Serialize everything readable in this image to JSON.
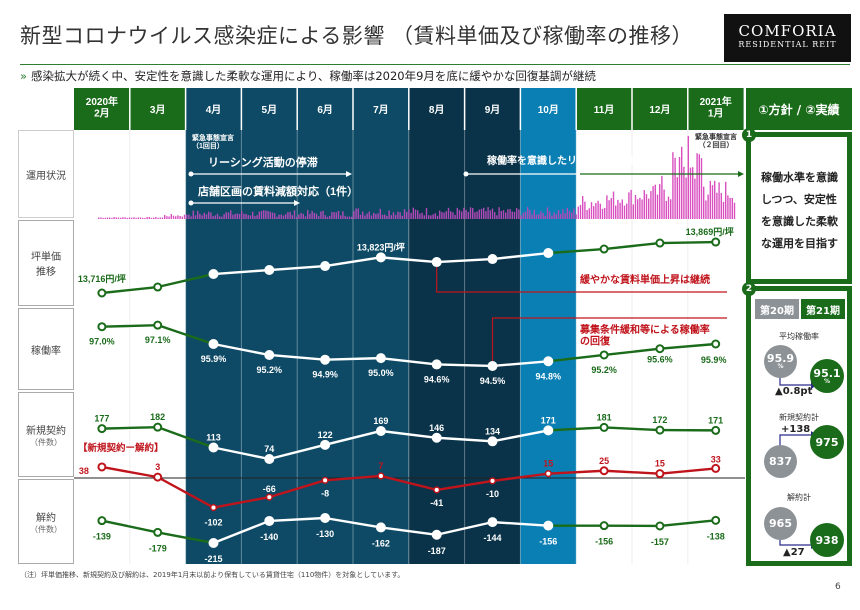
{
  "title": "新型コロナウイルス感染症による影響 （賃料単価及び稼働率の推移）",
  "logo": {
    "line1": "COMFORIA",
    "line2": "RESIDENTIAL REIT"
  },
  "subtitle_mark": "»",
  "subtitle": "感染拡大が続く中、安定性を意識した柔軟な運用により、稼働率は2020年9月を底に緩やかな回復基調が継続",
  "months": [
    "2020年\n2月",
    "3月",
    "4月",
    "5月",
    "6月",
    "7月",
    "8月",
    "9月",
    "10月",
    "11月",
    "12月",
    "2021年\n1月"
  ],
  "row_labels": {
    "status": "運用状況",
    "price": "坪単価\n推移",
    "occupancy": "稼働率",
    "new": "新規契約",
    "new_unit": "（件数）",
    "cancel": "解約",
    "cancel_unit": "（件数）"
  },
  "annotations": {
    "emergency1": "緊急事態宣言\n（1回目）",
    "leasing_stall": "リーシング活動の停滞",
    "rent_reduction": "店舗区画の賃料減額対応（1件）",
    "leasing_focus": "稼働率を意識したリーシング活動を展開",
    "emergency2": "緊急事態宣言\n（２回目）",
    "rent_rise": "緩やかな賃料単価上昇は継続",
    "occupancy_recovery": "募集条件緩和等による稼働率\nの回復",
    "net_label": "【新規契約ー解約】"
  },
  "colors": {
    "green": "#1a6b1a",
    "dark_teal": "#0e4a66",
    "darker_teal": "#0a3349",
    "blue": "#0a7fb3",
    "red": "#c0141c",
    "pink": "#d94fc0",
    "gray": "#8c9296"
  },
  "chart_data": {
    "type": "line",
    "categories": [
      "2020年2月",
      "3月",
      "4月",
      "5月",
      "6月",
      "7月",
      "8月",
      "9月",
      "10月",
      "11月",
      "12月",
      "2021年1月"
    ],
    "series": [
      {
        "key": "price",
        "values": [
          13716,
          13734,
          13773,
          13785,
          13797,
          13823,
          13809,
          13818,
          13836,
          13848,
          13866,
          13869
        ],
        "labels": [
          "13,716円/坪",
          "",
          "",
          "",
          "",
          "13,823円/坪",
          "",
          "",
          "",
          "",
          "",
          "13,869円/坪"
        ]
      },
      {
        "key": "occupancy",
        "values": [
          97.0,
          97.1,
          95.9,
          95.2,
          94.9,
          95.0,
          94.6,
          94.5,
          94.8,
          95.2,
          95.6,
          95.9
        ],
        "labels": [
          "97.0%",
          "97.1%",
          "95.9%",
          "95.2%",
          "94.9%",
          "95.0%",
          "94.6%",
          "94.5%",
          "94.8%",
          "95.2%",
          "95.6%",
          "95.9%"
        ]
      },
      {
        "key": "new",
        "values": [
          177,
          182,
          113,
          74,
          122,
          169,
          146,
          134,
          171,
          181,
          172,
          171
        ],
        "labels": [
          "177",
          "182",
          "113",
          "74",
          "122",
          "169",
          "146",
          "134",
          "171",
          "181",
          "172",
          "171"
        ]
      },
      {
        "key": "net",
        "values": [
          38,
          3,
          -102,
          -66,
          -8,
          7,
          -41,
          -10,
          15,
          25,
          15,
          33
        ],
        "labels": [
          "38",
          "3",
          "-102",
          "-66",
          "-8",
          "7",
          "-41",
          "-10",
          "15",
          "25",
          "15",
          "33"
        ]
      },
      {
        "key": "cancel",
        "values": [
          -139,
          -179,
          -215,
          -140,
          -130,
          -162,
          -187,
          -144,
          -156,
          -156,
          -157,
          -138
        ],
        "labels": [
          "-139",
          "-179",
          "-215",
          "-140",
          "-130",
          "-162",
          "-187",
          "-144",
          "-156",
          "-156",
          "-157",
          "-138"
        ]
      }
    ]
  },
  "panel": {
    "header": "①方針 / ②実績",
    "badge1": "1",
    "policy": "稼働水準を意識しつつ、安定性を意識した柔軟な運用を目指す",
    "badge2": "2",
    "period_prev": "第20期",
    "period_curr": "第21期",
    "occ_title": "平均稼働率",
    "occ_prev": "95.9",
    "occ_curr": "95.1",
    "pct": "%",
    "occ_delta": "▲0.8pt",
    "new_title": "新規契約計",
    "new_prev": "837",
    "new_curr": "975",
    "new_delta": "+138",
    "cancel_title": "解約計",
    "cancel_prev": "965",
    "cancel_curr": "938",
    "cancel_delta": "▲27"
  },
  "footnote": "（注）坪単価推移、新規契約及び解約は、2019年1月末以前より保有している賃貸住宅（110物件）を対象としています。",
  "page_number": "6"
}
